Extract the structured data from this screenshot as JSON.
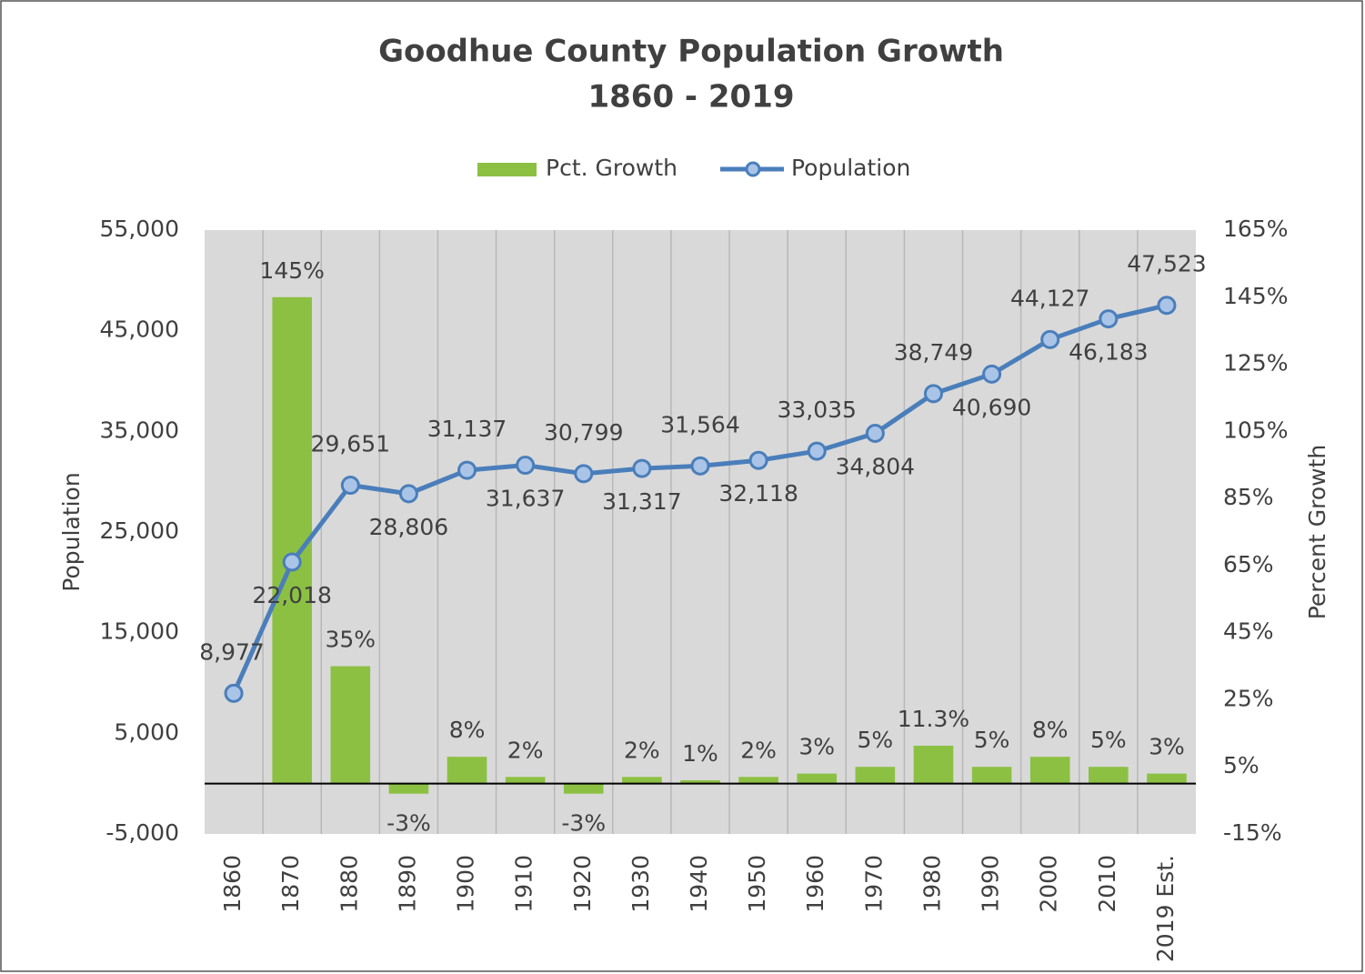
{
  "chart_data": {
    "type": "bar-line",
    "title": "Goodhue County Population Growth",
    "subtitle": "1860 - 2019",
    "ylabel": "Population",
    "y2label": "Percent Growth",
    "categories": [
      "1860",
      "1870",
      "1880",
      "1890",
      "1900",
      "1910",
      "1920",
      "1930",
      "1940",
      "1950",
      "1960",
      "1970",
      "1980",
      "1990",
      "2000",
      "2010",
      "2019 Est."
    ],
    "series": [
      {
        "name": "Pct. Growth",
        "type": "bar",
        "axis": "y2",
        "color": "#8cc043",
        "values": [
          null,
          145,
          35,
          -3,
          8,
          2,
          -3,
          2,
          1,
          2,
          3,
          5,
          11.3,
          5,
          8,
          5,
          3
        ],
        "value_labels": [
          null,
          "145%",
          "35%",
          "-3%",
          "8%",
          "2%",
          "-3%",
          "2%",
          "1%",
          "2%",
          "3%",
          "5%",
          "11.3%",
          "5%",
          "8%",
          "5%",
          "3%"
        ]
      },
      {
        "name": "Population",
        "type": "line",
        "axis": "y",
        "color": "#4a7ebb",
        "values": [
          8977,
          22018,
          29651,
          28806,
          31137,
          31637,
          30799,
          31317,
          31564,
          32118,
          33035,
          34804,
          38749,
          40690,
          44127,
          46183,
          47523
        ],
        "value_labels": [
          "8,977",
          "22,018",
          "29,651",
          "28,806",
          "31,137",
          "31,637",
          "30,799",
          "31,317",
          "31,564",
          "32,118",
          "33,035",
          "34,804",
          "38,749",
          "40,690",
          "44,127",
          "46,183",
          "47,523"
        ]
      }
    ],
    "ylim": [
      -5000,
      55000
    ],
    "yticks": [
      {
        "value": -5000,
        "label": "-5,000"
      },
      {
        "value": 5000,
        "label": "5,000"
      },
      {
        "value": 15000,
        "label": "15,000"
      },
      {
        "value": 25000,
        "label": "25,000"
      },
      {
        "value": 35000,
        "label": "35,000"
      },
      {
        "value": 45000,
        "label": "45,000"
      },
      {
        "value": 55000,
        "label": "55,000"
      }
    ],
    "y2lim": [
      -15,
      165
    ],
    "y2ticks": [
      {
        "value": -15,
        "label": "-15%"
      },
      {
        "value": 5,
        "label": "5%"
      },
      {
        "value": 25,
        "label": "25%"
      },
      {
        "value": 45,
        "label": "45%"
      },
      {
        "value": 65,
        "label": "65%"
      },
      {
        "value": 85,
        "label": "85%"
      },
      {
        "value": 105,
        "label": "105%"
      },
      {
        "value": 125,
        "label": "125%"
      },
      {
        "value": 145,
        "label": "145%"
      },
      {
        "value": 165,
        "label": "165%"
      }
    ],
    "grid": false,
    "legend": "top"
  }
}
